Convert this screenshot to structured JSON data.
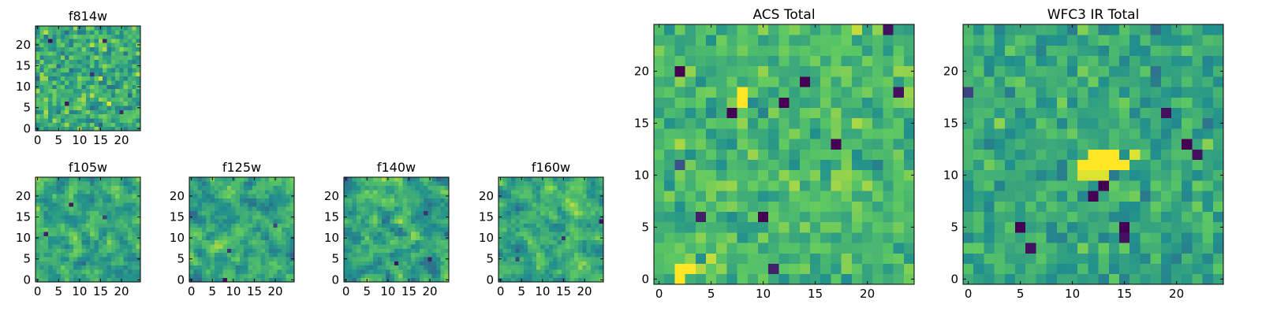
{
  "figure": {
    "colormap": "viridis",
    "colormap_stops": [
      "#440154",
      "#3b528b",
      "#21908d",
      "#5dc863",
      "#fde725"
    ]
  },
  "chart_data": [
    {
      "id": "f814w",
      "type": "heatmap",
      "title": "f814w",
      "grid_size": 25,
      "xlim": [
        -0.5,
        24.5
      ],
      "ylim": [
        -0.5,
        24.5
      ],
      "xticks": [
        0,
        5,
        10,
        15,
        20
      ],
      "yticks": [
        0,
        5,
        10,
        15,
        20
      ],
      "xtick_labels": [
        "0",
        "5",
        "10",
        "15",
        "20"
      ],
      "ytick_labels": [
        "0",
        "5",
        "10",
        "15",
        "20"
      ],
      "seed": 11,
      "mean": 0.62,
      "spread": 0.36,
      "smooth": 0,
      "features": [
        {
          "x": 3,
          "y": 21,
          "v": 0.05
        },
        {
          "x": 7,
          "y": 6,
          "v": 0.08
        },
        {
          "x": 16,
          "y": 21,
          "v": 0.1
        },
        {
          "x": 13,
          "y": 13,
          "v": 0.15
        },
        {
          "x": 20,
          "y": 4,
          "v": 0.12
        }
      ]
    },
    {
      "id": "f105w",
      "type": "heatmap",
      "title": "f105w",
      "grid_size": 25,
      "xlim": [
        -0.5,
        24.5
      ],
      "ylim": [
        -0.5,
        24.5
      ],
      "xticks": [
        0,
        5,
        10,
        15,
        20
      ],
      "yticks": [
        0,
        5,
        10,
        15,
        20
      ],
      "xtick_labels": [
        "0",
        "5",
        "10",
        "15",
        "20"
      ],
      "ytick_labels": [
        "0",
        "5",
        "10",
        "15",
        "20"
      ],
      "seed": 23,
      "mean": 0.6,
      "spread": 0.32,
      "smooth": 1,
      "features": [
        {
          "x": 8,
          "y": 18,
          "v": 0.05
        },
        {
          "x": 2,
          "y": 11,
          "v": 0.1
        },
        {
          "x": 16,
          "y": 15,
          "v": 0.2
        }
      ]
    },
    {
      "id": "f125w",
      "type": "heatmap",
      "title": "f125w",
      "grid_size": 25,
      "xlim": [
        -0.5,
        24.5
      ],
      "ylim": [
        -0.5,
        24.5
      ],
      "xticks": [
        0,
        5,
        10,
        15,
        20
      ],
      "yticks": [
        0,
        5,
        10,
        15,
        20
      ],
      "xtick_labels": [
        "0",
        "5",
        "10",
        "15",
        "20"
      ],
      "ytick_labels": [
        "0",
        "5",
        "10",
        "15",
        "20"
      ],
      "seed": 37,
      "mean": 0.6,
      "spread": 0.32,
      "smooth": 1,
      "features": [
        {
          "x": 8,
          "y": 0,
          "v": 0.05
        },
        {
          "x": 9,
          "y": 7,
          "v": 0.15
        },
        {
          "x": 20,
          "y": 13,
          "v": 0.2
        }
      ]
    },
    {
      "id": "f140w",
      "type": "heatmap",
      "title": "f140w",
      "grid_size": 25,
      "xlim": [
        -0.5,
        24.5
      ],
      "ylim": [
        -0.5,
        24.5
      ],
      "xticks": [
        0,
        5,
        10,
        15,
        20
      ],
      "yticks": [
        0,
        5,
        10,
        15,
        20
      ],
      "xtick_labels": [
        "0",
        "5",
        "10",
        "15",
        "20"
      ],
      "ytick_labels": [
        "0",
        "5",
        "10",
        "15",
        "20"
      ],
      "seed": 41,
      "mean": 0.58,
      "spread": 0.34,
      "smooth": 1,
      "features": [
        {
          "x": 12,
          "y": 4,
          "v": 0.05
        },
        {
          "x": 20,
          "y": 5,
          "v": 0.1
        },
        {
          "x": 19,
          "y": 16,
          "v": 0.15
        }
      ]
    },
    {
      "id": "f160w",
      "type": "heatmap",
      "title": "f160w",
      "grid_size": 25,
      "xlim": [
        -0.5,
        24.5
      ],
      "ylim": [
        -0.5,
        24.5
      ],
      "xticks": [
        0,
        5,
        10,
        15,
        20
      ],
      "yticks": [
        0,
        5,
        10,
        15,
        20
      ],
      "xtick_labels": [
        "0",
        "5",
        "10",
        "15",
        "20"
      ],
      "ytick_labels": [
        "0",
        "5",
        "10",
        "15",
        "20"
      ],
      "seed": 53,
      "mean": 0.62,
      "spread": 0.3,
      "smooth": 1,
      "features": [
        {
          "x": 24,
          "y": 14,
          "v": 0.05
        },
        {
          "x": 15,
          "y": 10,
          "v": 0.15
        },
        {
          "x": 4,
          "y": 5,
          "v": 0.2
        }
      ]
    },
    {
      "id": "acs-total",
      "type": "heatmap",
      "title": "ACS Total",
      "grid_size": 25,
      "xlim": [
        -0.5,
        24.5
      ],
      "ylim": [
        -0.5,
        24.5
      ],
      "xticks": [
        0,
        5,
        10,
        15,
        20
      ],
      "yticks": [
        0,
        5,
        10,
        15,
        20
      ],
      "xtick_labels": [
        "0",
        "5",
        "10",
        "15",
        "20"
      ],
      "ytick_labels": [
        "0",
        "5",
        "10",
        "15",
        "20"
      ],
      "seed": 67,
      "mean": 0.68,
      "spread": 0.26,
      "smooth": 0,
      "features": [
        {
          "x": 2,
          "y": 20,
          "v": 0.0
        },
        {
          "x": 14,
          "y": 19,
          "v": 0.0
        },
        {
          "x": 12,
          "y": 17,
          "v": 0.0
        },
        {
          "x": 7,
          "y": 16,
          "v": 0.0
        },
        {
          "x": 17,
          "y": 13,
          "v": 0.0
        },
        {
          "x": 10,
          "y": 6,
          "v": 0.0
        },
        {
          "x": 4,
          "y": 6,
          "v": 0.1
        },
        {
          "x": 23,
          "y": 18,
          "v": 0.05
        },
        {
          "x": 22,
          "y": 24,
          "v": 0.05
        },
        {
          "x": 11,
          "y": 1,
          "v": 0.1
        },
        {
          "x": 2,
          "y": 11,
          "v": 0.25
        },
        {
          "x": 8,
          "y": 18,
          "v": 1.0
        },
        {
          "x": 8,
          "y": 17,
          "v": 1.0
        },
        {
          "x": 2,
          "y": 0,
          "v": 1.0
        },
        {
          "x": 2,
          "y": 1,
          "v": 1.0
        },
        {
          "x": 3,
          "y": 1,
          "v": 1.0
        }
      ]
    },
    {
      "id": "wfc3-ir-total",
      "type": "heatmap",
      "title": "WFC3 IR Total",
      "grid_size": 25,
      "xlim": [
        -0.5,
        24.5
      ],
      "ylim": [
        -0.5,
        24.5
      ],
      "xticks": [
        0,
        5,
        10,
        15,
        20
      ],
      "yticks": [
        0,
        5,
        10,
        15,
        20
      ],
      "xtick_labels": [
        "0",
        "5",
        "10",
        "15",
        "20"
      ],
      "ytick_labels": [
        "0",
        "5",
        "10",
        "15",
        "20"
      ],
      "seed": 79,
      "mean": 0.6,
      "spread": 0.26,
      "smooth": 0,
      "features": [
        {
          "x": 21,
          "y": 13,
          "v": 0.0
        },
        {
          "x": 22,
          "y": 12,
          "v": 0.05
        },
        {
          "x": 19,
          "y": 16,
          "v": 0.05
        },
        {
          "x": 12,
          "y": 8,
          "v": 0.0
        },
        {
          "x": 13,
          "y": 9,
          "v": 0.0
        },
        {
          "x": 15,
          "y": 5,
          "v": 0.0
        },
        {
          "x": 15,
          "y": 4,
          "v": 0.05
        },
        {
          "x": 5,
          "y": 5,
          "v": 0.0
        },
        {
          "x": 6,
          "y": 3,
          "v": 0.05
        },
        {
          "x": 0,
          "y": 18,
          "v": 0.2
        },
        {
          "x": 12,
          "y": 12,
          "v": 1.0
        },
        {
          "x": 13,
          "y": 12,
          "v": 1.0
        },
        {
          "x": 14,
          "y": 12,
          "v": 1.0
        },
        {
          "x": 11,
          "y": 11,
          "v": 1.0
        },
        {
          "x": 12,
          "y": 11,
          "v": 1.0
        },
        {
          "x": 13,
          "y": 11,
          "v": 1.0
        },
        {
          "x": 14,
          "y": 11,
          "v": 1.0
        },
        {
          "x": 15,
          "y": 11,
          "v": 1.0
        },
        {
          "x": 16,
          "y": 12,
          "v": 0.95
        },
        {
          "x": 11,
          "y": 10,
          "v": 0.95
        },
        {
          "x": 12,
          "y": 10,
          "v": 0.95
        },
        {
          "x": 13,
          "y": 10,
          "v": 0.95
        }
      ]
    }
  ]
}
